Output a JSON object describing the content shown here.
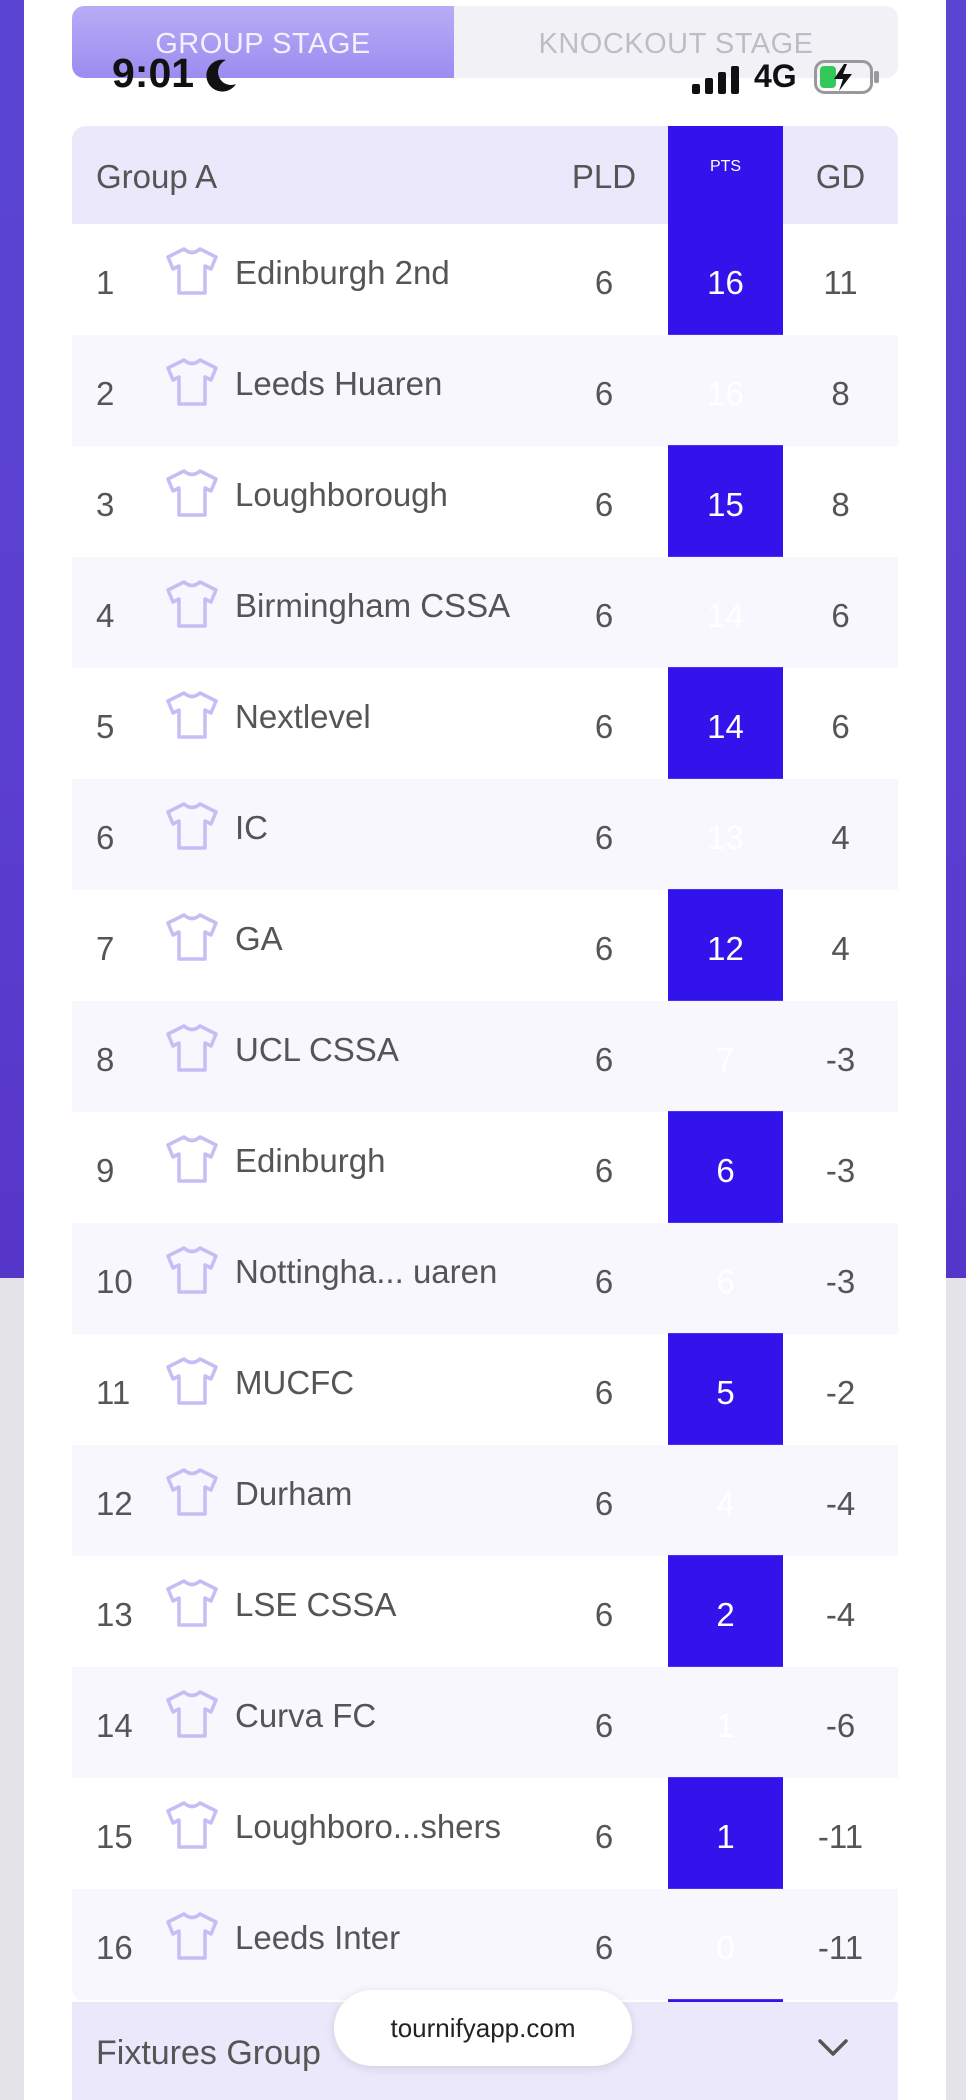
{
  "status_bar": {
    "time": "9:01",
    "network": "4G"
  },
  "tabs": [
    {
      "label": "GROUP STAGE",
      "active": true
    },
    {
      "label": "KNOCKOUT STAGE",
      "active": false
    }
  ],
  "table": {
    "group_title": "Group A",
    "columns": {
      "pld": "PLD",
      "pts": "PTS",
      "gd": "GD"
    },
    "rows": [
      {
        "pos": "1",
        "team": "Edinburgh 2nd",
        "pld": "6",
        "pts": "16",
        "gd": "11"
      },
      {
        "pos": "2",
        "team": "Leeds Huaren",
        "pld": "6",
        "pts": "16",
        "gd": "8"
      },
      {
        "pos": "3",
        "team": "Loughborough",
        "pld": "6",
        "pts": "15",
        "gd": "8"
      },
      {
        "pos": "4",
        "team": "Birmingham CSSA",
        "pld": "6",
        "pts": "14",
        "gd": "6"
      },
      {
        "pos": "5",
        "team": "Nextlevel",
        "pld": "6",
        "pts": "14",
        "gd": "6"
      },
      {
        "pos": "6",
        "team": "IC",
        "pld": "6",
        "pts": "13",
        "gd": "4"
      },
      {
        "pos": "7",
        "team": "GA",
        "pld": "6",
        "pts": "12",
        "gd": "4"
      },
      {
        "pos": "8",
        "team": "UCL CSSA",
        "pld": "6",
        "pts": "7",
        "gd": "-3"
      },
      {
        "pos": "9",
        "team": "Edinburgh",
        "pld": "6",
        "pts": "6",
        "gd": "-3"
      },
      {
        "pos": "10",
        "team": "Nottingha...  uaren",
        "pld": "6",
        "pts": "6",
        "gd": "-3"
      },
      {
        "pos": "11",
        "team": "MUCFC",
        "pld": "6",
        "pts": "5",
        "gd": "-2"
      },
      {
        "pos": "12",
        "team": "Durham",
        "pld": "6",
        "pts": "4",
        "gd": "-4"
      },
      {
        "pos": "13",
        "team": "LSE CSSA",
        "pld": "6",
        "pts": "2",
        "gd": "-4"
      },
      {
        "pos": "14",
        "team": "Curva FC",
        "pld": "6",
        "pts": "1",
        "gd": "-6"
      },
      {
        "pos": "15",
        "team": "Loughboro...shers",
        "pld": "6",
        "pts": "1",
        "gd": "-11"
      },
      {
        "pos": "16",
        "team": "Leeds Inter",
        "pld": "6",
        "pts": "0",
        "gd": "-11"
      }
    ]
  },
  "fixtures": {
    "label": "Fixtures Group"
  },
  "url_pill": {
    "text": "tournifyapp.com"
  },
  "colors": {
    "accent": "#3313ec",
    "header_bg": "#ebe8fb",
    "shirt_icon": "#c7bdf5"
  }
}
